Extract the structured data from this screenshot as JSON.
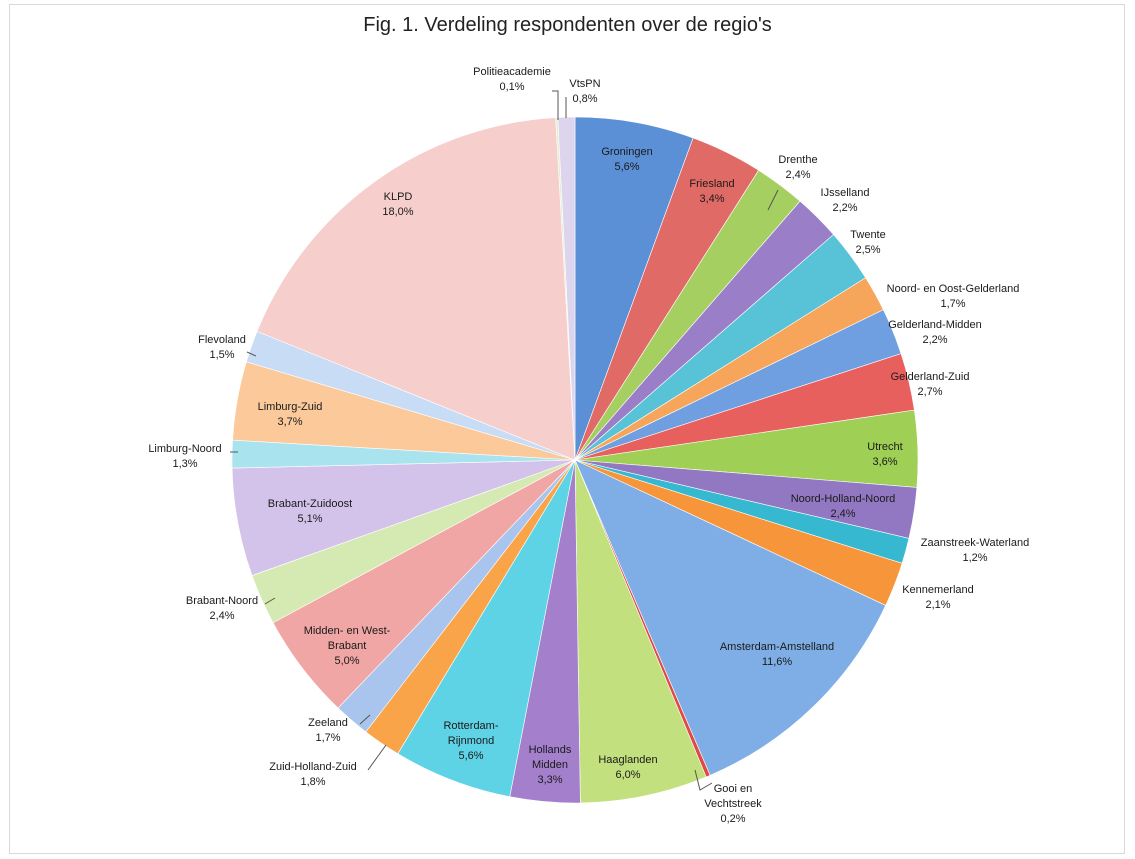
{
  "chart_data": {
    "type": "pie",
    "title": "Fig. 1. Verdeling respondenten over de regio's",
    "slices": [
      {
        "name": "Groningen",
        "label": "Groningen",
        "value": 5.6,
        "value_label": "5,6%",
        "color": "#5b8fd6"
      },
      {
        "name": "Friesland",
        "label": "Friesland",
        "value": 3.4,
        "value_label": "3,4%",
        "color": "#e06b66"
      },
      {
        "name": "Drenthe",
        "label": "Drenthe",
        "value": 2.4,
        "value_label": "2,4%",
        "color": "#a6cf62"
      },
      {
        "name": "IJsselland",
        "label": "IJsselland",
        "value": 2.2,
        "value_label": "2,2%",
        "color": "#9a7fc8"
      },
      {
        "name": "Twente",
        "label": "Twente",
        "value": 2.5,
        "value_label": "2,5%",
        "color": "#58c2d6"
      },
      {
        "name": "Noord- en Oost-Gelderland",
        "label": "Noord- en Oost-Gelderland",
        "value": 1.7,
        "value_label": "1,7%",
        "color": "#f7a55a"
      },
      {
        "name": "Gelderland-Midden",
        "label": "Gelderland-Midden",
        "value": 2.2,
        "value_label": "2,2%",
        "color": "#6f9fe0"
      },
      {
        "name": "Gelderland-Zuid",
        "label": "Gelderland-Zuid",
        "value": 2.7,
        "value_label": "2,7%",
        "color": "#e8605e"
      },
      {
        "name": "Utrecht",
        "label": "Utrecht",
        "value": 3.6,
        "value_label": "3,6%",
        "color": "#9fcf55"
      },
      {
        "name": "Noord-Holland-Noord",
        "label": "Noord-Holland-Noord",
        "value": 2.4,
        "value_label": "2,4%",
        "color": "#9278c2"
      },
      {
        "name": "Zaanstreek-Waterland",
        "label": "Zaanstreek-Waterland",
        "value": 1.2,
        "value_label": "1,2%",
        "color": "#36b8d0"
      },
      {
        "name": "Kennemerland",
        "label": "Kennemerland",
        "value": 2.1,
        "value_label": "2,1%",
        "color": "#f7953a"
      },
      {
        "name": "Amsterdam-Amstelland",
        "label": "Amsterdam-Amstelland",
        "value": 11.6,
        "value_label": "11,6%",
        "color": "#7faee6"
      },
      {
        "name": "Gooi en Vechtstreek",
        "label": "Gooi en Vechtstreek",
        "value": 0.2,
        "value_label": "0,2%",
        "color": "#e04a45"
      },
      {
        "name": "Haaglanden",
        "label": "Haaglanden",
        "value": 6.0,
        "value_label": "6,0%",
        "color": "#c2e07e"
      },
      {
        "name": "Hollands Midden",
        "label": "Hollands Midden",
        "value": 3.3,
        "value_label": "3,3%",
        "color": "#a480cc"
      },
      {
        "name": "Rotterdam-Rijnmond",
        "label": "Rotterdam-Rijnmond",
        "value": 5.6,
        "value_label": "5,6%",
        "color": "#5fd3e6"
      },
      {
        "name": "Zuid-Holland-Zuid",
        "label": "Zuid-Holland-Zuid",
        "value": 1.8,
        "value_label": "1,8%",
        "color": "#f9a448"
      },
      {
        "name": "Zeeland",
        "label": "Zeeland",
        "value": 1.7,
        "value_label": "1,7%",
        "color": "#a9c5ee"
      },
      {
        "name": "Midden- en West-Brabant",
        "label": "Midden- en West-Brabant",
        "value": 5.0,
        "value_label": "5,0%",
        "color": "#f0a6a4"
      },
      {
        "name": "Brabant-Noord",
        "label": "Brabant-Noord",
        "value": 2.4,
        "value_label": "2,4%",
        "color": "#d5eab2"
      },
      {
        "name": "Brabant-Zuidoost",
        "label": "Brabant-Zuidoost",
        "value": 5.1,
        "value_label": "5,1%",
        "color": "#d3c3ea"
      },
      {
        "name": "Limburg-Noord",
        "label": "Limburg-Noord",
        "value": 1.3,
        "value_label": "1,3%",
        "color": "#a9e3ee"
      },
      {
        "name": "Limburg-Zuid",
        "label": "Limburg-Zuid",
        "value": 3.7,
        "value_label": "3,7%",
        "color": "#fbc99a"
      },
      {
        "name": "Flevoland",
        "label": "Flevoland",
        "value": 1.5,
        "value_label": "1,5%",
        "color": "#c9dcf5"
      },
      {
        "name": "KLPD",
        "label": "KLPD",
        "value": 18.0,
        "value_label": "18,0%",
        "color": "#f6cfcd"
      },
      {
        "name": "Politieacademie",
        "label": "Politieacademie",
        "value": 0.1,
        "value_label": "0,1%",
        "color": "#e2eecd"
      },
      {
        "name": "VtsPN",
        "label": "VtsPN",
        "value": 0.8,
        "value_label": "0,8%",
        "color": "#ddd4ee"
      }
    ]
  }
}
